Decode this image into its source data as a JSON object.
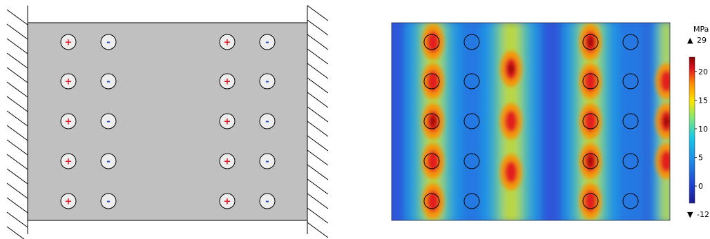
{
  "left_panel": {
    "plate_fill": "#c0c0c0",
    "electrode_fill": "#eeeeee",
    "positive_color": "#e0141e",
    "negative_color": "#2040d0",
    "positive_symbol": "+",
    "negative_symbol": "-",
    "electrode_rows": 5,
    "electrode_groups": 2,
    "boundary": "fixed (hatched) supports on left and right edges"
  },
  "right_panel": {
    "unit": "MPa",
    "max_marker": "▲",
    "max_value": "29",
    "min_marker": "▼",
    "min_value": "-12",
    "colorbar_ticks": [
      "20",
      "15",
      "10",
      "5",
      "0"
    ],
    "colormap": [
      "#8b0000",
      "#e0141e",
      "#ff8c00",
      "#ffe600",
      "#7de87a",
      "#16c8e8",
      "#1f5fe0",
      "#1a1a8c"
    ],
    "background_color": "#2f55d9"
  }
}
